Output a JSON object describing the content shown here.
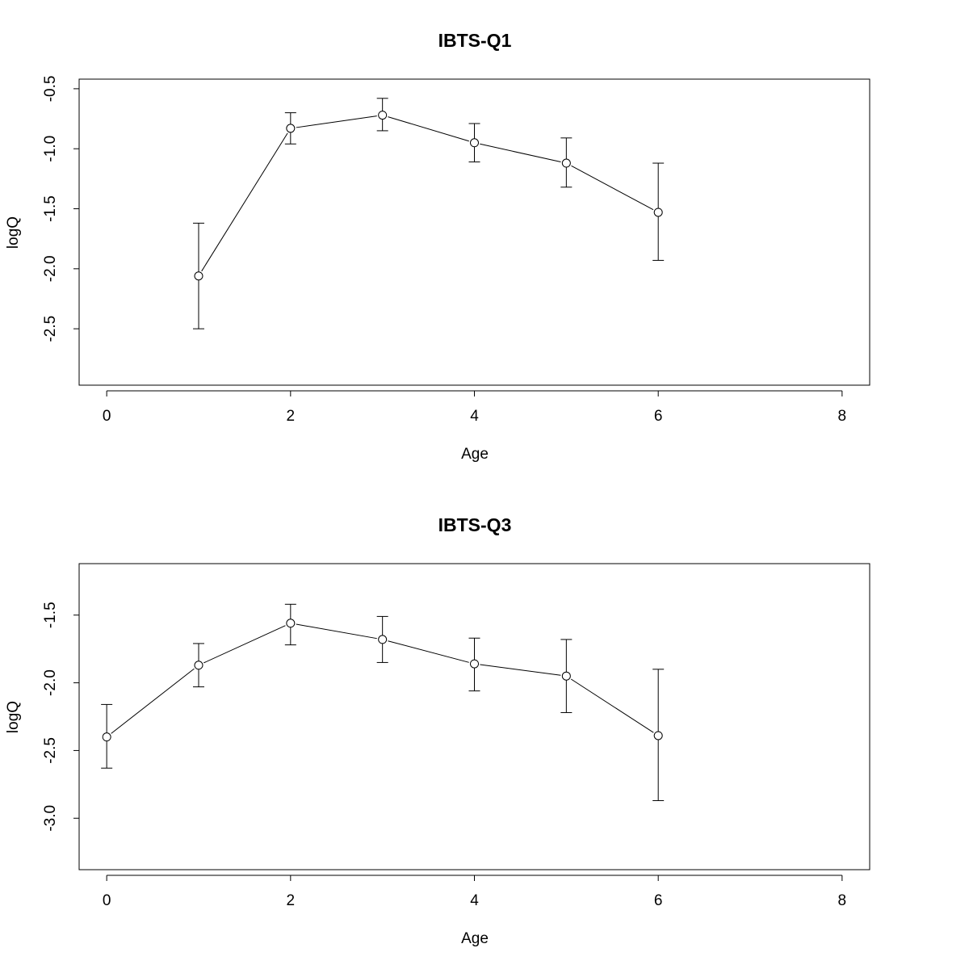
{
  "chart_data": [
    {
      "type": "line",
      "title": "IBTS-Q1",
      "xlabel": "Age",
      "ylabel": "logQ",
      "xlim": [
        -0.3,
        8.3
      ],
      "ylim": [
        -2.97,
        -0.42
      ],
      "xticks": [
        "0",
        "2",
        "4",
        "6",
        "8"
      ],
      "yticks": [
        "-0.5",
        "-1.0",
        "-1.5",
        "-2.0",
        "-2.5"
      ],
      "series": [
        {
          "x": [
            1,
            2,
            3,
            4,
            5,
            6
          ],
          "y": [
            -2.06,
            -0.83,
            -0.72,
            -0.95,
            -1.12,
            -1.53
          ],
          "lower": [
            -2.5,
            -0.96,
            -0.85,
            -1.11,
            -1.32,
            -1.93
          ],
          "upper": [
            -1.62,
            -0.7,
            -0.58,
            -0.79,
            -0.91,
            -1.12
          ]
        }
      ]
    },
    {
      "type": "line",
      "title": "IBTS-Q3",
      "xlabel": "Age",
      "ylabel": "logQ",
      "xlim": [
        -0.3,
        8.3
      ],
      "ylim": [
        -3.38,
        -1.12
      ],
      "xticks": [
        "0",
        "2",
        "4",
        "6",
        "8"
      ],
      "yticks": [
        "-1.5",
        "-2.0",
        "-2.5",
        "-3.0"
      ],
      "series": [
        {
          "x": [
            0,
            1,
            2,
            3,
            4,
            5,
            6
          ],
          "y": [
            -2.4,
            -1.87,
            -1.56,
            -1.68,
            -1.86,
            -1.95,
            -2.39
          ],
          "lower": [
            -2.63,
            -2.03,
            -1.72,
            -1.85,
            -2.06,
            -2.22,
            -2.87
          ],
          "upper": [
            -2.16,
            -1.71,
            -1.42,
            -1.51,
            -1.67,
            -1.68,
            -1.9
          ]
        }
      ]
    }
  ]
}
